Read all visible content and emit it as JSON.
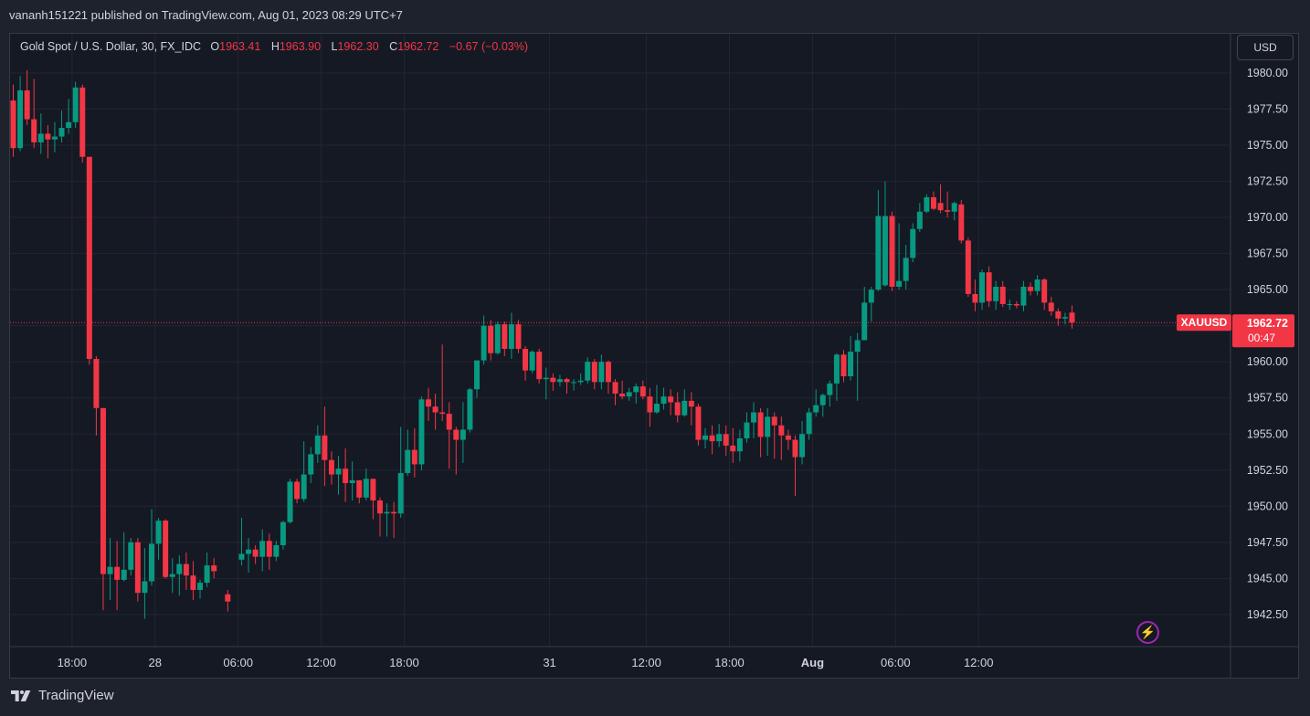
{
  "publisher_line": "vananh151221 published on TradingView.com, Aug 01, 2023 08:29 UTC+7",
  "legend": {
    "symbol": "Gold Spot / U.S. Dollar, 30, FX_IDC",
    "o_label": "O",
    "o": "1963.41",
    "h_label": "H",
    "h": "1963.90",
    "l_label": "L",
    "l": "1962.30",
    "c_label": "C",
    "c": "1962.72",
    "change": "−0.67 (−0.03%)"
  },
  "currency_button": "USD",
  "price_tag": {
    "symbol": "XAUUSD",
    "price": "1962.72",
    "countdown": "00:47"
  },
  "brand": "TradingView",
  "colors": {
    "bg": "#1e222d",
    "pane": "#151924",
    "grid": "#232632",
    "up": "#089981",
    "down": "#f23645",
    "text": "#d1d4dc"
  },
  "chart_data": {
    "type": "candlestick",
    "title": "Gold Spot / U.S. Dollar, 30, FX_IDC",
    "ylim": [
      1941.0,
      1981.5
    ],
    "y_ticks": [
      "1942.50",
      "1945.00",
      "1947.50",
      "1950.00",
      "1952.50",
      "1955.00",
      "1957.50",
      "1960.00",
      "1962.50",
      "1965.00",
      "1967.50",
      "1970.00",
      "1972.50",
      "1975.00",
      "1977.50",
      "1980.00"
    ],
    "x_ticks": [
      {
        "label": "18:00",
        "bar": 8.5
      },
      {
        "label": "28",
        "bar": 20.5
      },
      {
        "label": "06:00",
        "bar": 32.5
      },
      {
        "label": "12:00",
        "bar": 44.5
      },
      {
        "label": "18:00",
        "bar": 56.5
      },
      {
        "label": "31",
        "bar": 77.5
      },
      {
        "label": "12:00",
        "bar": 91.5
      },
      {
        "label": "18:00",
        "bar": 103.5
      },
      {
        "label": "Aug",
        "bar": 115.5
      },
      {
        "label": "06:00",
        "bar": 127.5
      },
      {
        "label": "12:00",
        "bar": 139.5
      }
    ],
    "last_price": 1962.72,
    "candles": [
      [
        1978.1,
        1974.8,
        1979.2,
        1974.2
      ],
      [
        1974.8,
        1978.8,
        1979.8,
        1974.6
      ],
      [
        1978.8,
        1976.8,
        1980.2,
        1976.4
      ],
      [
        1976.8,
        1975.2,
        1979.6,
        1974.8
      ],
      [
        1975.2,
        1975.8,
        1977.2,
        1974.4
      ],
      [
        1975.8,
        1975.4,
        1976.4,
        1974.1
      ],
      [
        1975.4,
        1975.6,
        1976.6,
        1974.5
      ],
      [
        1975.6,
        1976.2,
        1977.4,
        1975.2
      ],
      [
        1976.2,
        1976.6,
        1978.2,
        1975.8
      ],
      [
        1976.6,
        1979.0,
        1979.4,
        1976.2
      ],
      [
        1979.0,
        1974.2,
        1979.2,
        1973.8
      ],
      [
        1974.2,
        1960.2,
        1974.2,
        1959.8
      ],
      [
        1960.2,
        1956.8,
        1960.4,
        1954.9
      ],
      [
        1956.8,
        1945.3,
        1956.8,
        1942.8
      ],
      [
        1945.3,
        1945.8,
        1947.8,
        1943.5
      ],
      [
        1945.8,
        1944.9,
        1947.6,
        1942.8
      ],
      [
        1944.9,
        1945.6,
        1948.2,
        1944.8
      ],
      [
        1945.6,
        1947.5,
        1947.8,
        1945.2
      ],
      [
        1947.5,
        1944.0,
        1947.8,
        1943.4
      ],
      [
        1944.0,
        1944.8,
        1947.1,
        1942.2
      ],
      [
        1944.8,
        1947.4,
        1949.8,
        1944.5
      ],
      [
        1947.4,
        1949.0,
        1949.2,
        1946.3
      ],
      [
        1949.0,
        1945.1,
        1949.1,
        1945.0
      ],
      [
        1945.1,
        1945.3,
        1946.4,
        1944.0
      ],
      [
        1945.3,
        1946.0,
        1946.6,
        1943.8
      ],
      [
        1946.0,
        1945.2,
        1946.8,
        1944.2
      ],
      [
        1945.2,
        1944.2,
        1946.2,
        1943.5
      ],
      [
        1944.2,
        1944.7,
        1944.9,
        1943.6
      ],
      [
        1944.7,
        1945.9,
        1946.8,
        1944.4
      ],
      [
        1945.9,
        1945.5,
        1946.4,
        1945.0
      ],
      null,
      [
        1943.9,
        1943.4,
        1944.2,
        1942.7
      ],
      null,
      [
        1946.3,
        1946.7,
        1949.2,
        1945.9
      ],
      [
        1946.7,
        1947.0,
        1947.8,
        1945.4
      ],
      [
        1947.0,
        1946.5,
        1947.3,
        1946.0
      ],
      [
        1946.5,
        1947.6,
        1948.4,
        1945.5
      ],
      [
        1947.6,
        1946.5,
        1948.1,
        1945.6
      ],
      [
        1946.5,
        1947.3,
        1947.6,
        1946.2
      ],
      [
        1947.3,
        1948.9,
        1949.0,
        1947.0
      ],
      [
        1948.9,
        1951.7,
        1951.9,
        1948.8
      ],
      [
        1951.7,
        1950.5,
        1951.9,
        1950.2
      ],
      [
        1950.5,
        1952.2,
        1954.5,
        1950.3
      ],
      [
        1952.2,
        1953.6,
        1954.1,
        1951.6
      ],
      [
        1953.6,
        1954.9,
        1955.6,
        1953.0
      ],
      [
        1954.9,
        1953.2,
        1956.9,
        1951.4
      ],
      [
        1953.2,
        1952.2,
        1953.8,
        1951.5
      ],
      [
        1952.2,
        1952.6,
        1953.5,
        1950.8
      ],
      [
        1952.6,
        1951.6,
        1954.0,
        1950.3
      ],
      [
        1951.6,
        1951.8,
        1953.1,
        1950.4
      ],
      [
        1951.8,
        1950.6,
        1951.8,
        1950.2
      ],
      [
        1950.6,
        1951.9,
        1952.6,
        1950.4
      ],
      [
        1951.9,
        1950.4,
        1951.2,
        1949.1
      ],
      [
        1950.4,
        1949.5,
        1950.6,
        1947.9
      ],
      [
        1949.5,
        1949.6,
        1950.2,
        1947.9
      ],
      [
        1949.6,
        1949.5,
        1950.3,
        1947.8
      ],
      [
        1949.5,
        1952.3,
        1955.5,
        1949.2
      ],
      [
        1952.3,
        1953.9,
        1955.3,
        1952.1
      ],
      [
        1953.9,
        1952.9,
        1955.4,
        1952.0
      ],
      [
        1952.9,
        1957.4,
        1957.6,
        1952.5
      ],
      [
        1957.4,
        1956.9,
        1958.2,
        1955.9
      ],
      [
        1956.9,
        1956.5,
        1957.8,
        1955.3
      ],
      [
        1956.5,
        1956.4,
        1961.2,
        1955.9
      ],
      [
        1956.4,
        1955.3,
        1957.2,
        1952.6
      ],
      [
        1955.3,
        1954.6,
        1955.5,
        1952.2
      ],
      [
        1954.6,
        1955.3,
        1957.2,
        1953.0
      ],
      [
        1955.3,
        1958.1,
        1958.2,
        1955.1
      ],
      [
        1958.1,
        1960.1,
        1960.1,
        1957.5
      ],
      [
        1960.1,
        1962.5,
        1963.2,
        1959.8
      ],
      [
        1962.5,
        1960.6,
        1962.9,
        1960.1
      ],
      [
        1960.6,
        1962.6,
        1962.8,
        1960.5
      ],
      [
        1962.6,
        1960.9,
        1962.8,
        1960.4
      ],
      [
        1960.9,
        1962.6,
        1963.4,
        1960.2
      ],
      [
        1962.6,
        1960.9,
        1962.9,
        1960.6
      ],
      [
        1960.9,
        1959.4,
        1961.1,
        1958.7
      ],
      [
        1959.4,
        1960.7,
        1960.8,
        1959.2
      ],
      [
        1960.7,
        1958.8,
        1960.9,
        1958.5
      ],
      [
        1958.8,
        1958.9,
        1959.6,
        1957.4
      ],
      [
        1958.9,
        1958.6,
        1959.2,
        1958.0
      ],
      [
        1958.6,
        1958.8,
        1959.1,
        1958.3
      ],
      [
        1958.8,
        1958.6,
        1958.9,
        1957.8
      ],
      [
        1958.6,
        1958.6,
        1958.8,
        1958.0
      ],
      [
        1958.6,
        1958.7,
        1959.2,
        1958.4
      ],
      [
        1958.7,
        1960.0,
        1960.3,
        1958.5
      ],
      [
        1960.0,
        1958.6,
        1960.2,
        1958.1
      ],
      [
        1958.6,
        1960.0,
        1960.5,
        1958.1
      ],
      [
        1960.0,
        1958.6,
        1960.1,
        1957.8
      ],
      [
        1958.6,
        1957.8,
        1958.8,
        1957.0
      ],
      [
        1957.8,
        1957.6,
        1958.7,
        1957.4
      ],
      [
        1957.6,
        1957.9,
        1958.2,
        1957.3
      ],
      [
        1957.9,
        1958.3,
        1958.5,
        1957.1
      ],
      [
        1958.3,
        1957.6,
        1958.7,
        1957.4
      ],
      [
        1957.6,
        1956.5,
        1958.2,
        1955.5
      ],
      [
        1956.5,
        1957.1,
        1958.4,
        1956.4
      ],
      [
        1957.1,
        1957.6,
        1958.2,
        1956.7
      ],
      [
        1957.6,
        1957.2,
        1958.1,
        1956.3
      ],
      [
        1957.2,
        1956.3,
        1957.9,
        1955.8
      ],
      [
        1956.3,
        1957.3,
        1958.1,
        1956.2
      ],
      [
        1957.3,
        1956.9,
        1957.9,
        1955.6
      ],
      [
        1956.9,
        1954.6,
        1957.1,
        1954.2
      ],
      [
        1954.6,
        1954.9,
        1955.4,
        1954.0
      ],
      [
        1954.9,
        1954.5,
        1955.6,
        1953.6
      ],
      [
        1954.5,
        1955.0,
        1955.7,
        1954.1
      ],
      [
        1955.0,
        1954.2,
        1955.6,
        1953.5
      ],
      [
        1954.2,
        1953.8,
        1955.4,
        1953.0
      ],
      [
        1953.8,
        1954.7,
        1955.3,
        1953.1
      ],
      [
        1954.7,
        1955.8,
        1956.5,
        1954.4
      ],
      [
        1955.8,
        1956.5,
        1957.2,
        1954.7
      ],
      [
        1956.5,
        1954.8,
        1956.8,
        1953.4
      ],
      [
        1954.8,
        1956.2,
        1956.8,
        1953.5
      ],
      [
        1956.2,
        1955.6,
        1956.5,
        1953.3
      ],
      [
        1955.6,
        1954.9,
        1956.2,
        1953.2
      ],
      [
        1954.9,
        1954.6,
        1955.3,
        1953.9
      ],
      [
        1954.6,
        1953.4,
        1954.9,
        1950.7
      ],
      [
        1953.4,
        1955.0,
        1955.9,
        1952.9
      ],
      [
        1955.0,
        1956.5,
        1956.8,
        1954.6
      ],
      [
        1956.5,
        1957.0,
        1958.1,
        1956.2
      ],
      [
        1957.0,
        1957.7,
        1957.8,
        1956.2
      ],
      [
        1957.7,
        1958.5,
        1958.7,
        1956.9
      ],
      [
        1958.5,
        1960.5,
        1960.6,
        1957.3
      ],
      [
        1960.5,
        1959.0,
        1960.8,
        1958.6
      ],
      [
        1959.0,
        1960.7,
        1961.8,
        1958.7
      ],
      [
        1960.7,
        1961.5,
        1962.0,
        1957.3
      ],
      [
        1961.5,
        1964.1,
        1965.2,
        1961.5
      ],
      [
        1964.1,
        1965.0,
        1965.2,
        1962.8
      ],
      [
        1965.0,
        1970.1,
        1971.9,
        1964.9
      ],
      [
        1965.3,
        1970.1,
        1972.5,
        1965.2
      ],
      [
        1970.1,
        1965.2,
        1970.4,
        1964.9
      ],
      [
        1965.2,
        1965.6,
        1969.6,
        1965.0
      ],
      [
        1965.6,
        1967.2,
        1968.1,
        1965.0
      ],
      [
        1967.2,
        1969.2,
        1969.6,
        1966.9
      ],
      [
        1969.2,
        1970.4,
        1971.0,
        1969.0
      ],
      [
        1970.4,
        1971.4,
        1971.6,
        1970.3
      ],
      [
        1971.4,
        1970.6,
        1971.8,
        1970.5
      ],
      [
        1971.0,
        1970.5,
        1972.3,
        1970.3
      ],
      [
        1970.5,
        1970.4,
        1971.8,
        1970.0
      ],
      [
        1970.4,
        1971.0,
        1971.1,
        1969.8
      ],
      [
        1970.9,
        1968.4,
        1971.2,
        1968.2
      ],
      [
        1968.4,
        1964.7,
        1968.6,
        1964.5
      ],
      [
        1964.7,
        1964.1,
        1965.7,
        1963.5
      ],
      [
        1964.1,
        1966.2,
        1966.4,
        1963.6
      ],
      [
        1966.2,
        1964.2,
        1966.6,
        1963.8
      ],
      [
        1964.2,
        1965.2,
        1965.6,
        1963.6
      ],
      [
        1965.2,
        1964.0,
        1965.6,
        1963.8
      ],
      [
        1964.0,
        1964.0,
        1964.3,
        1963.6
      ],
      [
        1964.0,
        1963.9,
        1964.2,
        1963.7
      ],
      [
        1963.9,
        1965.2,
        1965.6,
        1963.5
      ],
      [
        1965.2,
        1964.9,
        1965.5,
        1964.6
      ],
      [
        1964.9,
        1965.7,
        1966.0,
        1964.6
      ],
      [
        1965.7,
        1964.1,
        1965.8,
        1963.6
      ],
      [
        1964.1,
        1963.5,
        1964.5,
        1963.2
      ],
      [
        1963.5,
        1963.0,
        1963.7,
        1962.5
      ],
      [
        1963.0,
        1963.1,
        1963.4,
        1962.6
      ],
      [
        1963.41,
        1962.72,
        1963.9,
        1962.3
      ]
    ]
  }
}
